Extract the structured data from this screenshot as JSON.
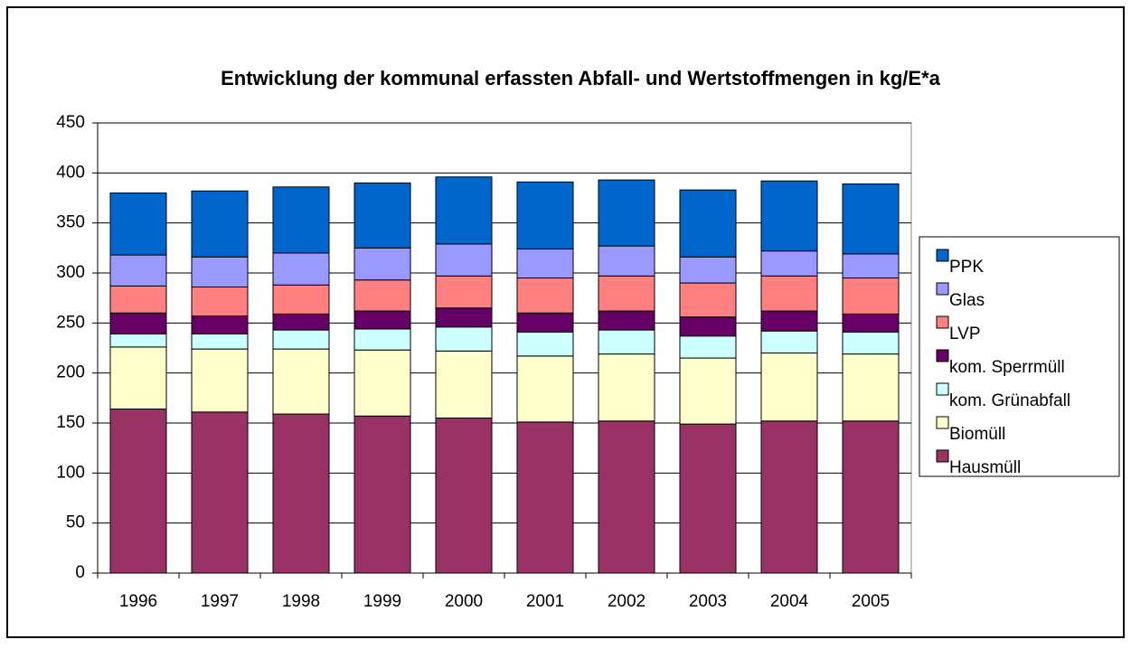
{
  "chart_data": {
    "type": "stacked_bar",
    "title": "Entwicklung der kommunal erfassten Abfall- und Wertstoffmengen in kg/E*a",
    "categories": [
      "1996",
      "1997",
      "1998",
      "1999",
      "2000",
      "2001",
      "2002",
      "2003",
      "2004",
      "2005"
    ],
    "series": [
      {
        "name": "Hausmüll",
        "color": "#993366",
        "values": [
          164,
          161,
          159,
          157,
          155,
          151,
          152,
          149,
          152,
          152
        ]
      },
      {
        "name": "Biomüll",
        "color": "#ffffcc",
        "values": [
          62,
          63,
          65,
          66,
          67,
          66,
          67,
          66,
          68,
          67
        ]
      },
      {
        "name": "kom. Grünabfall",
        "color": "#ccffff",
        "values": [
          13,
          15,
          19,
          21,
          24,
          24,
          24,
          22,
          22,
          22
        ]
      },
      {
        "name": "kom. Sperrmüll",
        "color": "#660066",
        "values": [
          21,
          18,
          16,
          18,
          19,
          19,
          19,
          19,
          20,
          18
        ]
      },
      {
        "name": "LVP",
        "color": "#ff8080",
        "values": [
          27,
          29,
          29,
          31,
          32,
          35,
          35,
          34,
          35,
          36
        ]
      },
      {
        "name": "Glas",
        "color": "#9999ff",
        "values": [
          31,
          30,
          32,
          32,
          32,
          29,
          30,
          26,
          25,
          24
        ]
      },
      {
        "name": "PPK",
        "color": "#0066cc",
        "values": [
          62,
          66,
          66,
          65,
          67,
          67,
          66,
          67,
          70,
          70
        ]
      }
    ],
    "ylim": [
      0,
      450
    ],
    "yticks": [
      0,
      50,
      100,
      150,
      200,
      250,
      300,
      350,
      400,
      450
    ],
    "grid": true,
    "legend": "right"
  }
}
